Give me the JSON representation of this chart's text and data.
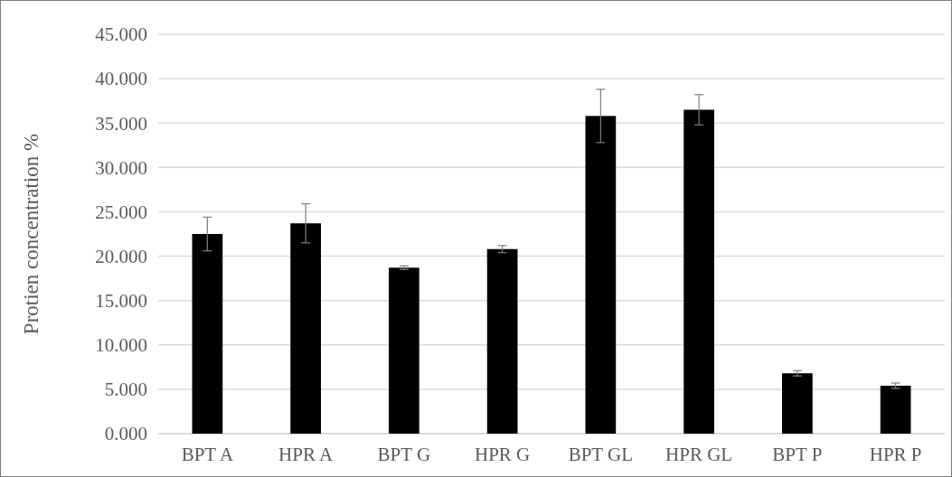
{
  "chart_data": {
    "type": "bar",
    "ylabel": "Protien concentration %",
    "categories": [
      "BPT A",
      "HPR A",
      "BPT G",
      "HPR G",
      "BPT GL",
      "HPR GL",
      "BPT P",
      "HPR P"
    ],
    "values": [
      22.5,
      23.7,
      18.7,
      20.8,
      35.8,
      36.5,
      6.8,
      5.4
    ],
    "errors": [
      1.9,
      2.2,
      0.2,
      0.4,
      3.0,
      1.7,
      0.3,
      0.3
    ],
    "color": "#000000",
    "ylim": [
      0,
      45
    ],
    "yticks": [
      {
        "value": 0,
        "label": "0.000"
      },
      {
        "value": 5,
        "label": "5.000"
      },
      {
        "value": 10,
        "label": "10.000"
      },
      {
        "value": 15,
        "label": "15.000"
      },
      {
        "value": 20,
        "label": "20.000"
      },
      {
        "value": 25,
        "label": "25.000"
      },
      {
        "value": 30,
        "label": "30.000"
      },
      {
        "value": 35,
        "label": "35.000"
      },
      {
        "value": 40,
        "label": "40.000"
      },
      {
        "value": 45,
        "label": "45.000"
      }
    ],
    "grid": "y"
  }
}
